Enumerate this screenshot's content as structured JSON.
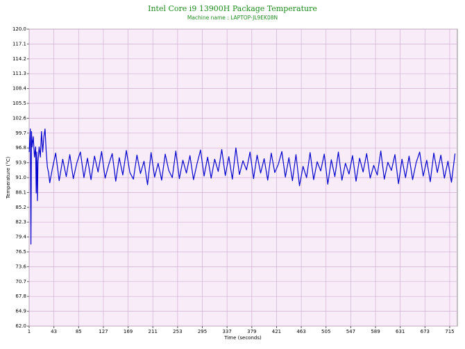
{
  "chart_data": {
    "type": "line",
    "title": "Intel Core i9 13900H Package Temperature",
    "subtitle": "Machine name : LAPTOP-JL9EK08N",
    "x_label": "Time (seconds)",
    "y_label": "Temperature (°C)",
    "color": "#0000cc",
    "background": "#f9ecf9",
    "grid_color": "#cfb0cf",
    "title_color": "#1e8c1e",
    "grid": true,
    "xlim": [
      1,
      728
    ],
    "ylim": [
      62,
      120
    ],
    "xticks": [
      1,
      43,
      85,
      127,
      169,
      211,
      253,
      295,
      337,
      379,
      421,
      463,
      505,
      547,
      589,
      631,
      673,
      715
    ],
    "yticks": [
      {
        "value": 62,
        "label": "62.0"
      },
      64.9,
      67.8,
      70.7,
      73.6,
      76.5,
      79.4,
      82.3,
      85.2,
      88.1,
      {
        "value": 91,
        "label": "91.0"
      },
      93.9,
      96.8,
      99.7,
      102.6,
      105.5,
      108.4,
      111.3,
      114.2,
      117.1,
      {
        "value": 120,
        "label": "120.0"
      }
    ],
    "x": [
      1,
      2,
      3,
      4,
      5,
      6,
      8,
      10,
      12,
      13,
      14,
      15,
      16,
      18,
      20,
      22,
      24,
      26,
      28,
      30,
      32,
      34,
      36,
      40,
      46,
      52,
      58,
      64,
      70,
      76,
      82,
      88,
      94,
      100,
      106,
      112,
      118,
      124,
      130,
      136,
      142,
      148,
      154,
      160,
      166,
      172,
      178,
      184,
      190,
      196,
      202,
      208,
      214,
      220,
      226,
      232,
      238,
      244,
      250,
      256,
      262,
      268,
      274,
      280,
      286,
      292,
      298,
      304,
      310,
      316,
      322,
      328,
      334,
      340,
      346,
      352,
      358,
      364,
      370,
      376,
      382,
      388,
      394,
      400,
      406,
      412,
      418,
      424,
      430,
      436,
      442,
      448,
      454,
      460,
      466,
      472,
      478,
      484,
      490,
      496,
      502,
      508,
      514,
      520,
      526,
      532,
      538,
      544,
      550,
      556,
      562,
      568,
      574,
      580,
      586,
      592,
      598,
      604,
      610,
      616,
      622,
      628,
      634,
      640,
      646,
      652,
      658,
      664,
      670,
      676,
      682,
      688,
      694,
      700,
      706,
      712,
      718,
      724
    ],
    "values": [
      96,
      98,
      100.5,
      78,
      100,
      97,
      99,
      95,
      97,
      88,
      96,
      86.5,
      94,
      97,
      95,
      100,
      96,
      99,
      100.5,
      96,
      93,
      92,
      90,
      92.5,
      95.8,
      90.4,
      94.6,
      91.2,
      95.5,
      90.8,
      93.9,
      96.0,
      91.0,
      94.8,
      90.6,
      95.2,
      92.1,
      96.1,
      90.9,
      93.5,
      95.7,
      90.3,
      94.9,
      91.5,
      96.3,
      92.0,
      90.7,
      95.4,
      91.8,
      94.2,
      89.6,
      95.9,
      91.1,
      93.8,
      90.5,
      95.6,
      92.4,
      91.0,
      96.2,
      90.8,
      94.4,
      91.9,
      95.3,
      90.6,
      93.7,
      96.4,
      91.3,
      95.0,
      90.9,
      94.6,
      92.2,
      96.5,
      91.4,
      95.1,
      90.7,
      96.8,
      91.6,
      94.3,
      92.5,
      96.0,
      90.8,
      95.4,
      91.9,
      94.7,
      90.5,
      95.8,
      92.0,
      93.6,
      96.1,
      91.1,
      94.9,
      90.4,
      95.5,
      89.4,
      93.2,
      91.0,
      95.9,
      90.6,
      94.1,
      92.3,
      95.6,
      89.7,
      94.5,
      91.2,
      96.0,
      90.5,
      93.8,
      91.7,
      95.3,
      90.3,
      94.8,
      92.1,
      95.7,
      90.9,
      93.4,
      91.5,
      96.2,
      90.7,
      94.0,
      92.4,
      95.5,
      89.8,
      94.6,
      91.0,
      95.2,
      90.6,
      93.9,
      96.0,
      91.3,
      94.4,
      90.2,
      95.8,
      92.0,
      95.4,
      90.9,
      94.2,
      90.1,
      95.7
    ]
  }
}
